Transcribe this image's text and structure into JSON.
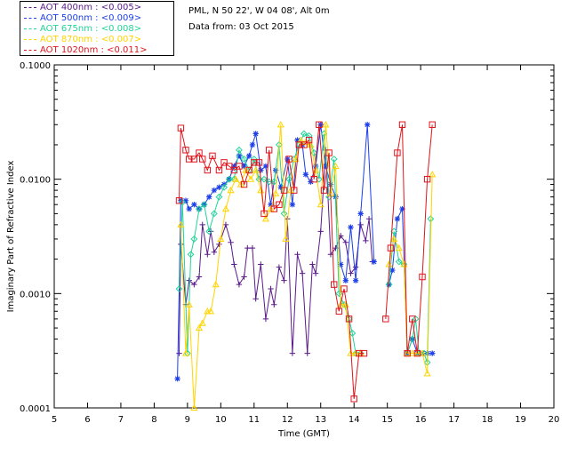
{
  "header": {
    "station": "PML, N 50 22', W 04 08', Alt 0m",
    "date": "Data from: 03 Oct 2015"
  },
  "legend": [
    {
      "label": "AOT  400nm : <0.005>",
      "color": "#5a1a8a"
    },
    {
      "label": "AOT  500nm : <0.009>",
      "color": "#1c3fe8"
    },
    {
      "label": "AOT  675nm : <0.008>",
      "color": "#22d39a"
    },
    {
      "label": "AOT  870nm : <0.007>",
      "color": "#ffd400"
    },
    {
      "label": "AOT 1020nm : <0.011>",
      "color": "#e0141c"
    }
  ],
  "chart_data": {
    "type": "line",
    "xlabel": "Time (GMT)",
    "ylabel": "Imaginary Part of Refractive Index",
    "xlim": [
      5,
      20
    ],
    "ylim": [
      0.0001,
      0.1
    ],
    "yscale": "log",
    "xticks": [
      "5",
      "6",
      "7",
      "8",
      "9",
      "10",
      "11",
      "12",
      "13",
      "14",
      "15",
      "16",
      "17",
      "18",
      "19",
      "20"
    ],
    "yticks": [
      "0.0001",
      "0.0010",
      "0.0100",
      "0.1000"
    ],
    "series": [
      {
        "name": "AOT  400nm : <0.005>",
        "marker": "plus",
        "color": "#5a1a8a",
        "segments": [
          [
            [
              8.75,
              0.0003
            ],
            [
              8.8,
              0.0027
            ],
            [
              8.95,
              0.0008
            ],
            [
              9.05,
              0.0013
            ],
            [
              9.2,
              0.0012
            ],
            [
              9.35,
              0.0014
            ],
            [
              9.45,
              0.004
            ],
            [
              9.6,
              0.0022
            ],
            [
              9.7,
              0.0035
            ],
            [
              9.8,
              0.0023
            ],
            [
              9.95,
              0.0027
            ],
            [
              10.15,
              0.004
            ],
            [
              10.3,
              0.0028
            ],
            [
              10.4,
              0.0018
            ],
            [
              10.55,
              0.0012
            ],
            [
              10.7,
              0.0014
            ],
            [
              10.8,
              0.0025
            ],
            [
              10.95,
              0.0025
            ],
            [
              11.05,
              0.0009
            ],
            [
              11.2,
              0.0018
            ],
            [
              11.35,
              0.0006
            ],
            [
              11.5,
              0.0011
            ],
            [
              11.6,
              0.0008
            ],
            [
              11.75,
              0.0017
            ],
            [
              11.9,
              0.0013
            ],
            [
              12.0,
              0.0045
            ],
            [
              12.15,
              0.0003
            ],
            [
              12.3,
              0.0022
            ],
            [
              12.45,
              0.0015
            ],
            [
              12.6,
              0.0003
            ],
            [
              12.75,
              0.0018
            ],
            [
              12.85,
              0.0015
            ],
            [
              13.0,
              0.0035
            ],
            [
              13.15,
              0.018
            ],
            [
              13.3,
              0.0022
            ],
            [
              13.45,
              0.0025
            ],
            [
              13.6,
              0.0032
            ],
            [
              13.75,
              0.0028
            ],
            [
              13.9,
              0.0015
            ],
            [
              14.05,
              0.0017
            ],
            [
              14.2,
              0.004
            ],
            [
              14.35,
              0.0029
            ],
            [
              14.45,
              0.0045
            ],
            [
              14.55,
              0.0019
            ]
          ]
        ]
      },
      {
        "name": "AOT  500nm : <0.009>",
        "marker": "star",
        "color": "#1c3fe8",
        "segments": [
          [
            [
              8.7,
              0.00018
            ],
            [
              8.8,
              0.0065
            ],
            [
              8.95,
              0.0065
            ],
            [
              9.05,
              0.0055
            ],
            [
              9.2,
              0.006
            ],
            [
              9.35,
              0.0055
            ],
            [
              9.5,
              0.006
            ],
            [
              9.65,
              0.007
            ],
            [
              9.8,
              0.008
            ],
            [
              9.95,
              0.0085
            ],
            [
              10.1,
              0.009
            ],
            [
              10.25,
              0.01
            ],
            [
              10.4,
              0.013
            ],
            [
              10.55,
              0.016
            ],
            [
              10.7,
              0.013
            ],
            [
              10.85,
              0.016
            ],
            [
              10.95,
              0.02
            ],
            [
              11.05,
              0.025
            ],
            [
              11.2,
              0.012
            ],
            [
              11.35,
              0.013
            ],
            [
              11.5,
              0.006
            ],
            [
              11.65,
              0.012
            ],
            [
              11.8,
              0.0085
            ],
            [
              12.0,
              0.015
            ],
            [
              12.15,
              0.006
            ],
            [
              12.3,
              0.022
            ],
            [
              12.45,
              0.02
            ],
            [
              12.55,
              0.011
            ],
            [
              12.7,
              0.0095
            ],
            [
              12.85,
              0.013
            ],
            [
              13.0,
              0.03
            ],
            [
              13.15,
              0.013
            ],
            [
              13.3,
              0.009
            ],
            [
              13.45,
              0.007
            ],
            [
              13.6,
              0.0018
            ],
            [
              13.75,
              0.0013
            ],
            [
              13.9,
              0.0038
            ],
            [
              14.05,
              0.0013
            ],
            [
              14.2,
              0.005
            ],
            [
              14.4,
              0.03
            ],
            [
              14.6,
              0.0019
            ]
          ],
          [
            [
              15.05,
              0.0012
            ],
            [
              15.15,
              0.0016
            ],
            [
              15.3,
              0.0045
            ],
            [
              15.45,
              0.0055
            ],
            [
              15.6,
              0.0003
            ],
            [
              15.75,
              0.0004
            ],
            [
              15.9,
              0.0003
            ],
            [
              16.05,
              0.0003
            ],
            [
              16.2,
              0.0003
            ],
            [
              16.35,
              0.0003
            ]
          ]
        ]
      },
      {
        "name": "AOT  675nm : <0.008>",
        "marker": "diamond",
        "color": "#22d39a",
        "segments": [
          [
            [
              8.75,
              0.0011
            ],
            [
              8.85,
              0.0063
            ],
            [
              9.0,
              0.0003
            ],
            [
              9.1,
              0.0022
            ],
            [
              9.2,
              0.003
            ],
            [
              9.35,
              0.0055
            ],
            [
              9.5,
              0.006
            ],
            [
              9.65,
              0.0035
            ],
            [
              9.8,
              0.005
            ],
            [
              9.95,
              0.007
            ],
            [
              10.1,
              0.0085
            ],
            [
              10.25,
              0.01
            ],
            [
              10.4,
              0.01
            ],
            [
              10.55,
              0.018
            ],
            [
              10.7,
              0.015
            ],
            [
              10.85,
              0.012
            ],
            [
              11.0,
              0.015
            ],
            [
              11.15,
              0.01
            ],
            [
              11.3,
              0.01
            ],
            [
              11.45,
              0.0095
            ],
            [
              11.6,
              0.0095
            ],
            [
              11.75,
              0.02
            ],
            [
              11.9,
              0.005
            ],
            [
              12.05,
              0.01
            ],
            [
              12.2,
              0.015
            ],
            [
              12.35,
              0.02
            ],
            [
              12.5,
              0.025
            ],
            [
              12.65,
              0.024
            ],
            [
              12.8,
              0.017
            ],
            [
              12.95,
              0.01
            ],
            [
              13.1,
              0.025
            ],
            [
              13.25,
              0.007
            ],
            [
              13.4,
              0.015
            ],
            [
              13.55,
              0.001
            ],
            [
              13.7,
              0.0008
            ],
            [
              13.85,
              0.0006
            ],
            [
              13.95,
              0.00045
            ],
            [
              14.05,
              0.0003
            ],
            [
              14.2,
              0.0003
            ]
          ],
          [
            [
              15.05,
              0.0012
            ],
            [
              15.2,
              0.0035
            ],
            [
              15.35,
              0.0019
            ],
            [
              15.5,
              0.0018
            ],
            [
              15.6,
              0.0003
            ],
            [
              15.75,
              0.0004
            ],
            [
              15.85,
              0.0006
            ],
            [
              15.95,
              0.0003
            ],
            [
              16.1,
              0.0003
            ],
            [
              16.2,
              0.00025
            ],
            [
              16.3,
              0.0045
            ]
          ]
        ]
      },
      {
        "name": "AOT  870nm : <0.007>",
        "marker": "triangle",
        "color": "#ffd400",
        "segments": [
          [
            [
              8.8,
              0.004
            ],
            [
              8.95,
              0.0003
            ],
            [
              9.05,
              0.0008
            ],
            [
              9.2,
              0.0001
            ],
            [
              9.35,
              0.0005
            ],
            [
              9.45,
              0.00055
            ],
            [
              9.6,
              0.0007
            ],
            [
              9.7,
              0.0007
            ],
            [
              9.85,
              0.0012
            ],
            [
              10.0,
              0.003
            ],
            [
              10.15,
              0.0055
            ],
            [
              10.3,
              0.008
            ],
            [
              10.45,
              0.01
            ],
            [
              10.6,
              0.009
            ],
            [
              10.75,
              0.012
            ],
            [
              10.9,
              0.01
            ],
            [
              11.05,
              0.012
            ],
            [
              11.2,
              0.008
            ],
            [
              11.35,
              0.0045
            ],
            [
              11.5,
              0.0055
            ],
            [
              11.65,
              0.0075
            ],
            [
              11.8,
              0.03
            ],
            [
              11.95,
              0.003
            ],
            [
              12.1,
              0.008
            ],
            [
              12.25,
              0.015
            ],
            [
              12.4,
              0.022
            ],
            [
              12.55,
              0.021
            ],
            [
              12.7,
              0.02
            ],
            [
              12.85,
              0.012
            ],
            [
              13.0,
              0.006
            ],
            [
              13.15,
              0.03
            ],
            [
              13.3,
              0.0075
            ],
            [
              13.45,
              0.013
            ],
            [
              13.6,
              0.0008
            ],
            [
              13.75,
              0.0008
            ],
            [
              13.9,
              0.0003
            ],
            [
              14.05,
              0.0003
            ],
            [
              14.2,
              0.0003
            ]
          ],
          [
            [
              15.05,
              0.0018
            ],
            [
              15.2,
              0.003
            ],
            [
              15.35,
              0.0025
            ],
            [
              15.5,
              0.0018
            ],
            [
              15.6,
              0.0003
            ],
            [
              15.75,
              0.0003
            ],
            [
              15.9,
              0.0003
            ],
            [
              16.05,
              0.0003
            ],
            [
              16.2,
              0.0002
            ],
            [
              16.35,
              0.011
            ]
          ]
        ]
      },
      {
        "name": "AOT 1020nm : <0.011>",
        "marker": "square",
        "color": "#e0141c",
        "segments": [
          [
            [
              8.75,
              0.0065
            ],
            [
              8.8,
              0.028
            ],
            [
              8.95,
              0.018
            ],
            [
              9.05,
              0.015
            ],
            [
              9.2,
              0.015
            ],
            [
              9.35,
              0.017
            ],
            [
              9.45,
              0.015
            ],
            [
              9.6,
              0.012
            ],
            [
              9.75,
              0.016
            ],
            [
              9.95,
              0.012
            ],
            [
              10.1,
              0.014
            ],
            [
              10.25,
              0.013
            ],
            [
              10.4,
              0.012
            ],
            [
              10.55,
              0.013
            ],
            [
              10.7,
              0.009
            ],
            [
              10.85,
              0.012
            ],
            [
              11.0,
              0.014
            ],
            [
              11.15,
              0.014
            ],
            [
              11.3,
              0.005
            ],
            [
              11.45,
              0.018
            ],
            [
              11.6,
              0.0055
            ],
            [
              11.75,
              0.006
            ],
            [
              11.9,
              0.008
            ],
            [
              12.05,
              0.015
            ],
            [
              12.2,
              0.008
            ],
            [
              12.35,
              0.02
            ],
            [
              12.5,
              0.02
            ],
            [
              12.65,
              0.022
            ],
            [
              12.8,
              0.01
            ],
            [
              12.95,
              0.03
            ],
            [
              13.1,
              0.008
            ],
            [
              13.25,
              0.017
            ],
            [
              13.4,
              0.0012
            ],
            [
              13.55,
              0.0007
            ],
            [
              13.7,
              0.0011
            ],
            [
              13.85,
              0.0006
            ],
            [
              14.0,
              0.00012
            ],
            [
              14.15,
              0.0003
            ],
            [
              14.3,
              0.0003
            ]
          ],
          [
            [
              14.95,
              0.0006
            ],
            [
              15.1,
              0.0025
            ],
            [
              15.3,
              0.017
            ],
            [
              15.45,
              0.03
            ],
            [
              15.6,
              0.0003
            ],
            [
              15.75,
              0.0006
            ],
            [
              15.9,
              0.0003
            ],
            [
              16.05,
              0.0014
            ],
            [
              16.2,
              0.01
            ],
            [
              16.35,
              0.03
            ]
          ]
        ]
      }
    ]
  }
}
